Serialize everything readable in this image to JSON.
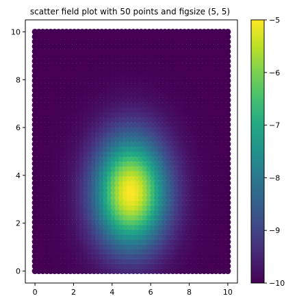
{
  "chart_data": {
    "type": "scatter",
    "title": "scatter field plot with 50 points and figsize (5, 5)",
    "xlabel": "",
    "ylabel": "",
    "grid_points_per_axis": 50,
    "xlim": [
      -0.5,
      10.5
    ],
    "ylim": [
      -0.5,
      10.5
    ],
    "x_ticks": [
      0,
      2,
      4,
      6,
      8,
      10
    ],
    "y_ticks": [
      0,
      2,
      4,
      6,
      8,
      10
    ],
    "grid": false,
    "field": {
      "description_kind": "gaussian",
      "center_x": 5.0,
      "center_y": 3.3,
      "sigma_x": 1.3,
      "sigma_y": 1.6,
      "min_value": -10,
      "max_value": -5
    },
    "colorbar": {
      "colormap": "viridis",
      "placement": "right",
      "range": [
        -10,
        -5
      ],
      "ticks": [
        -5,
        -6,
        -7,
        -8,
        -9,
        -10
      ],
      "tick_labels": [
        "−5",
        "−6",
        "−7",
        "−8",
        "−9",
        "−10"
      ]
    }
  }
}
